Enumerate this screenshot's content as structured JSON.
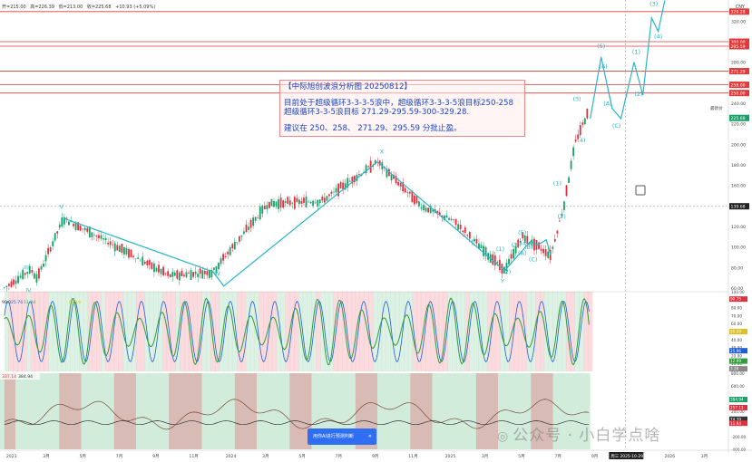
{
  "header": {
    "open": "开=215.00",
    "high": "高=226.39",
    "low": "低=213.00",
    "close": "收=225.68",
    "change": "+10.93 (+5.09%)",
    "currency": "CNY"
  },
  "annotation": {
    "title": "【中际旭创波浪分析图 20250812】",
    "line1": "目前处于超级循环3-3-3-5浪中，超级循环3-3-3-5浪目标250-258",
    "line2": "超级循环3-3-5浪目标 271.29-295.59-300-329.28.",
    "line3": "建议在 250、258、 271.29、295.59 分批止盈。"
  },
  "ai_button": {
    "label": "用你AI进行预测判断",
    "close": "✕"
  },
  "watermark": {
    "text": "公众号 · 小白学点啥"
  },
  "colors": {
    "up": "#18a068",
    "down": "#e0303c",
    "wave": "#27b6c8",
    "hline": "#e03a3a",
    "osc_green": "#2e9e3a",
    "osc_yellow": "#e0c020",
    "osc_blue": "#1f5fd6"
  },
  "chart_data": {
    "type": "candlestick",
    "ylim": [
      60,
      330
    ],
    "y_ticks": [
      "320.00",
      "300.00",
      "280.00",
      "260.00",
      "240.00",
      "220.00",
      "200.00",
      "180.00",
      "160.00",
      "140.00",
      "120.00",
      "100.00",
      "80.00",
      "60.00"
    ],
    "x_ticks": [
      "2023",
      "3月",
      "5月",
      "7月",
      "9月",
      "11月",
      "2024",
      "3月",
      "5月",
      "7月",
      "9月",
      "11月",
      "2025",
      "3月",
      "5月",
      "7月",
      "9月",
      "11月",
      "2026",
      "3月"
    ],
    "last_price_label": "225.68",
    "crosshair_price": "139.68",
    "crosshair_date": "周三 2025-10-29",
    "price_tag": "最新价",
    "target_lines": [
      {
        "value": 329.28,
        "label": "329.28"
      },
      {
        "value": 300.0,
        "label": "300.00"
      },
      {
        "value": 295.59,
        "label": "295.59"
      },
      {
        "value": 271.29,
        "label": "271.29"
      },
      {
        "value": 258.0,
        "label": "258.00"
      },
      {
        "value": 250.0,
        "label": "250.00"
      }
    ],
    "wave_path": [
      {
        "t": 2024.0,
        "v": 62
      },
      {
        "t": 2023.27,
        "v": 128
      },
      {
        "t": 2023.95,
        "v": 76
      },
      {
        "t": 2024.7,
        "v": 183
      },
      {
        "t": 2025.28,
        "v": 77
      },
      {
        "t": 2025.4,
        "v": 106
      },
      {
        "t": 2025.43,
        "v": 102
      },
      {
        "t": 2025.47,
        "v": 107
      },
      {
        "t": 2025.49,
        "v": 92
      }
    ],
    "wave_labels": [
      {
        "label": "III",
        "t": 2023.1,
        "v": 78
      },
      {
        "label": "IV",
        "t": 2023.11,
        "v": 56
      },
      {
        "label": "V",
        "t": 2023.26,
        "v": 137
      },
      {
        "label": "W",
        "t": 2023.97,
        "v": 72
      },
      {
        "label": "X",
        "t": 2024.72,
        "v": 191
      },
      {
        "label": "Y",
        "t": 2025.27,
        "v": 65
      },
      {
        "label": "(1)",
        "t": 2025.26,
        "v": 96
      },
      {
        "label": "(2)",
        "t": 2025.29,
        "v": 74
      },
      {
        "label": "(3)",
        "t": 2025.33,
        "v": 100
      },
      {
        "label": "(5)",
        "t": 2025.36,
        "v": 112
      },
      {
        "label": "(4)",
        "t": 2025.37,
        "v": 102
      },
      {
        "label": "(B)",
        "t": 2025.39,
        "v": 98
      },
      {
        "label": "(A)",
        "t": 2025.36,
        "v": 92
      },
      {
        "label": "(C)",
        "t": 2025.41,
        "v": 86
      },
      {
        "label": "(1)",
        "t": 2025.52,
        "v": 160
      },
      {
        "label": "(2)",
        "t": 2025.54,
        "v": 128
      },
      {
        "label": "(3)",
        "t": 2025.61,
        "v": 242
      },
      {
        "label": "(4)",
        "t": 2025.63,
        "v": 202
      },
      {
        "label": "(5)",
        "t": 2025.72,
        "v": 294
      },
      {
        "label": "(6)",
        "t": 2025.73,
        "v": 274
      },
      {
        "label": "(A)",
        "t": 2025.75,
        "v": 238
      },
      {
        "label": "(C)",
        "t": 2025.79,
        "v": 216
      },
      {
        "label": "(1)",
        "t": 2025.88,
        "v": 288
      },
      {
        "label": "(2)",
        "t": 2025.89,
        "v": 247
      },
      {
        "label": "(3)",
        "t": 2025.96,
        "v": 335
      },
      {
        "label": "(4)",
        "t": 2025.98,
        "v": 303
      },
      {
        "label": "(5)",
        "t": 2026.0,
        "v": 345
      }
    ],
    "projection": [
      {
        "t": 2025.67,
        "v": 225
      },
      {
        "t": 2025.72,
        "v": 285
      },
      {
        "t": 2025.77,
        "v": 235
      },
      {
        "t": 2025.81,
        "v": 225
      },
      {
        "t": 2025.87,
        "v": 280
      },
      {
        "t": 2025.91,
        "v": 248
      },
      {
        "t": 2025.95,
        "v": 323
      },
      {
        "t": 2025.98,
        "v": 310
      },
      {
        "t": 2026.01,
        "v": 340
      }
    ],
    "oscillator": {
      "label": "90.0",
      "values_label": [
        "25.76",
        "11.34",
        "68.16"
      ],
      "y_ticks": [
        "100.00",
        "90.00",
        "80.00",
        "70.00",
        "60.00",
        "50.00",
        "40.00",
        "30.00",
        "20.00",
        "10.00"
      ],
      "markers": [
        "90.75",
        "50.00",
        "25.96",
        "12.99",
        "3.26"
      ]
    },
    "lower_panel": {
      "label": "337.14",
      "value": "384.94",
      "y_ticks": [
        "800.00",
        "600.00",
        "400.00",
        "200.00",
        "0.00",
        "-200.00",
        "-400.00"
      ],
      "markers": [
        "384.94",
        "257.11",
        "74.39",
        "11.94"
      ]
    }
  }
}
